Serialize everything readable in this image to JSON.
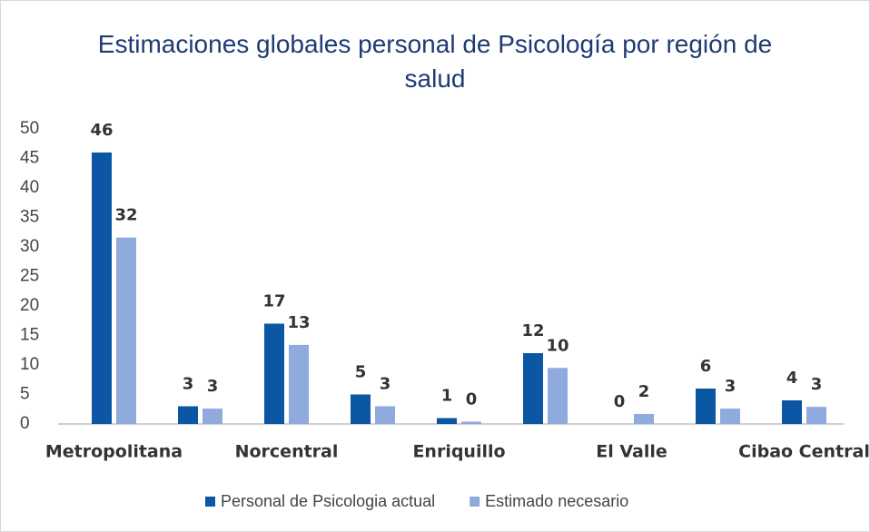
{
  "chart_data": {
    "type": "bar",
    "title": "Estimaciones globales personal de Psicología por región de salud",
    "categories": [
      "Metropolitana",
      null,
      "Norcentral",
      null,
      "Enriquillo",
      null,
      "El Valle",
      null,
      "Cibao Central"
    ],
    "series": [
      {
        "name": "Personal de Psicologia actual",
        "color": "#0b57a4",
        "values": [
          46,
          3,
          17,
          5,
          1,
          12,
          0,
          6,
          4
        ]
      },
      {
        "name": "Estimado necesario",
        "color": "#8faadc",
        "values": [
          31.6,
          2.6,
          13.4,
          3,
          0.4,
          9.5,
          1.7,
          2.6,
          2.9
        ],
        "value_labels": [
          "32",
          "3",
          "13",
          "3",
          "0",
          "10",
          "2",
          "3",
          "3"
        ]
      }
    ],
    "ylim": [
      0,
      50
    ],
    "yticks": [
      0,
      5,
      10,
      15,
      20,
      25,
      30,
      35,
      40,
      45,
      50
    ],
    "grid": false,
    "legend": "bottom"
  }
}
